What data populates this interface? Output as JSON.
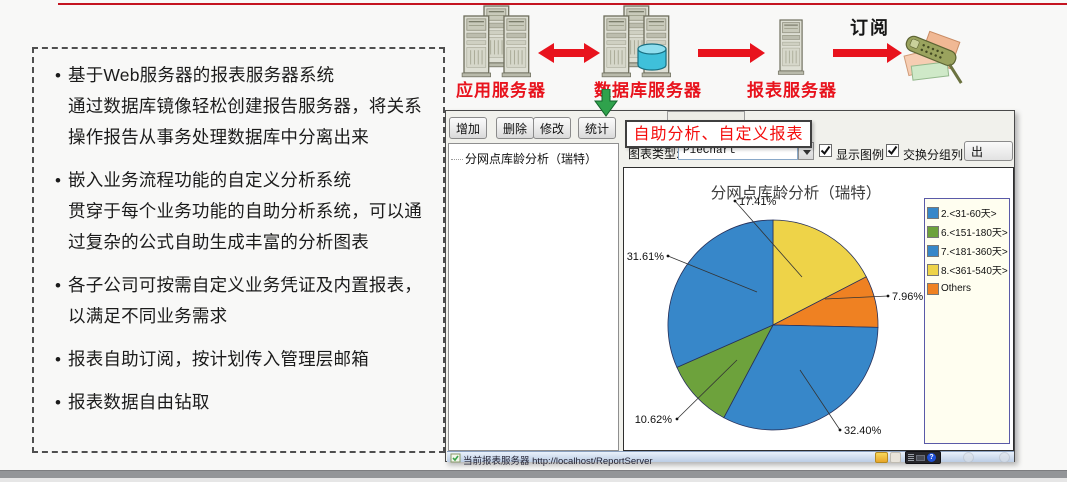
{
  "slide": {
    "bullets": [
      {
        "title": "基于Web服务器的报表服务器系统",
        "body": "通过数据库镜像轻松创建报告服务器，将关系操作报告从事务处理数据库中分离出来"
      },
      {
        "title": "嵌入业务流程功能的自定义分析系统",
        "body": "贯穿于每个业务功能的自助分析系统，可以通过复杂的公式自助生成丰富的分析图表"
      },
      {
        "title": "各子公司可按需自定义业务凭证及内置报表，以满足不同业务需求",
        "body": ""
      },
      {
        "title": "报表自助订阅，按计划传入管理层邮箱",
        "body": ""
      },
      {
        "title": "报表数据自由钻取",
        "body": ""
      }
    ]
  },
  "diagram": {
    "app_server_label": "应用服务器",
    "db_server_label": "数据库服务器",
    "report_server_label": "报表服务器",
    "subscribe_label": "订阅",
    "label_color": "#e8131d",
    "icons": [
      "server-cluster-icon",
      "database-icon",
      "server-tower-icon",
      "phone-fax-icon",
      "red-arrow-icon",
      "green-down-arrow-icon"
    ]
  },
  "window": {
    "toolbar": {
      "add": "增加",
      "delete": "删除",
      "modify": "修改",
      "stats": "统计"
    },
    "tree_item": "分网点库龄分析（瑞特）",
    "callout": "自助分析、自定义报表",
    "chart_type_label": "图表类型:",
    "chart_type_value": "PieChart",
    "show_legend_label": "显示图例",
    "show_legend_checked": true,
    "swap_group_label": "交换分组列",
    "swap_group_checked": true,
    "export_label": "出",
    "status_text": "当前报表服务器 http://localhost/ReportServer",
    "tray_help_glyph": "?"
  },
  "chart_data": {
    "type": "pie",
    "title": "分网点库龄分析（瑞特）",
    "slices": [
      {
        "label": "8.<361-540天>",
        "value": 17.41,
        "color": "#eed348"
      },
      {
        "label": "Others",
        "value": 7.96,
        "color": "#ef8122"
      },
      {
        "label": "7.<181-360天>",
        "value": 32.4,
        "color": "#3787c9"
      },
      {
        "label": "6.<151-180天>",
        "value": 10.62,
        "color": "#6da23c"
      },
      {
        "label": "2.<31-60天>",
        "value": 31.61,
        "color": "#3787c9"
      }
    ],
    "legend": [
      {
        "label": "2.<31-60天>",
        "color": "#3787c9"
      },
      {
        "label": "6.<151-180天>",
        "color": "#6da23c"
      },
      {
        "label": "7.<181-360天>",
        "color": "#3787c9"
      },
      {
        "label": "8.<361-540天>",
        "color": "#eed348"
      },
      {
        "label": "Others",
        "color": "#ef8122"
      }
    ],
    "legend_position": "right",
    "labels_format": "percent"
  }
}
